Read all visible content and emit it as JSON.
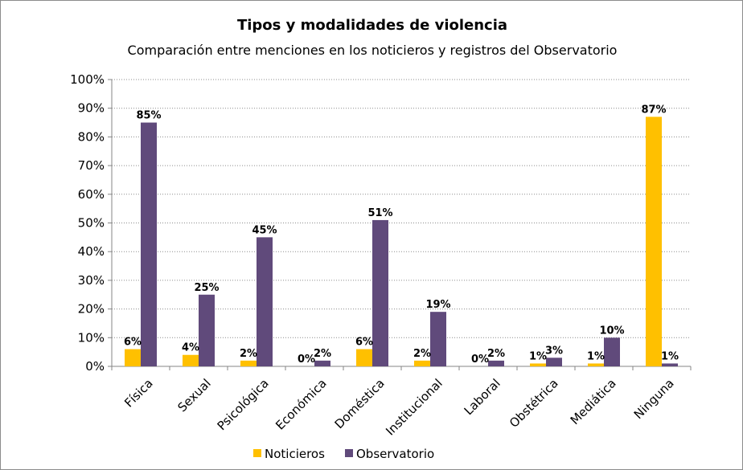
{
  "chart_data": {
    "type": "bar",
    "title": "Tipos y modalidades  de violencia",
    "subtitle": "Comparación entre menciones en los noticieros y registros del Observatorio",
    "categories": [
      "Física",
      "Sexual",
      "Psicológica",
      "Económica",
      "Doméstica",
      "Institucional",
      "Laboral",
      "Obstétrica",
      "Mediática",
      "Ninguna"
    ],
    "series": [
      {
        "name": "Noticieros",
        "color": "#FFC000",
        "values": [
          6,
          4,
          2,
          0,
          6,
          2,
          0,
          1,
          1,
          87
        ],
        "labels": [
          "6%",
          "4%",
          "2%",
          "0%",
          "6%",
          "2%",
          "0%",
          "1%",
          "1%",
          "87%"
        ]
      },
      {
        "name": "Observatorio",
        "color": "#604A7B",
        "values": [
          85,
          25,
          45,
          2,
          51,
          19,
          2,
          3,
          10,
          1
        ],
        "labels": [
          "85%",
          "25%",
          "45%",
          "2%",
          "51%",
          "19%",
          "2%",
          "3%",
          "10%",
          "1%"
        ]
      }
    ],
    "y_ticks": [
      "0%",
      "10%",
      "20%",
      "30%",
      "40%",
      "50%",
      "60%",
      "70%",
      "80%",
      "90%",
      "100%"
    ],
    "ylim": [
      0,
      100
    ],
    "grid": true,
    "legend_position": "bottom"
  }
}
